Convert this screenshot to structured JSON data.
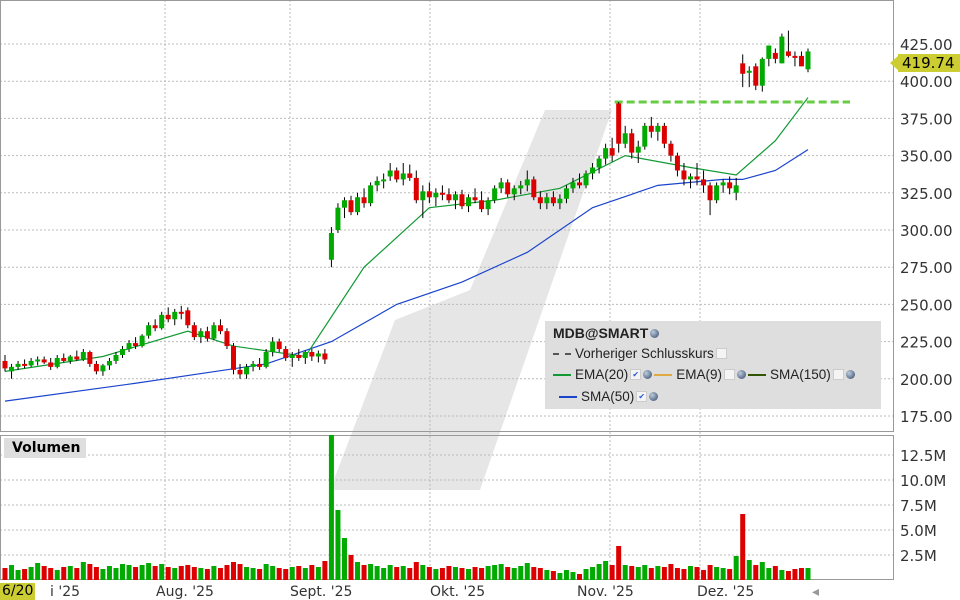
{
  "chart_data": {
    "type": "candlestick",
    "symbol": "MDB@SMART",
    "last_price": "419.74",
    "previous_close": 386,
    "previous_close_label": "Vorheriger Schlusskurs",
    "y_ticks": [
      "425.00",
      "400.00",
      "375.00",
      "350.00",
      "325.00",
      "300.00",
      "275.00",
      "250.00",
      "225.00",
      "200.00",
      "175.00"
    ],
    "ylim": [
      175,
      425
    ],
    "volume_label": "Volumen",
    "volume_ticks": [
      "12.5M",
      "10.0M",
      "7.5M",
      "5.0M",
      "2.5M"
    ],
    "x_labels": [
      "6/20",
      "i '25",
      "Aug. '25",
      "Sept. '25",
      "Okt. '25",
      "Nov. '25",
      "Dez. '25"
    ],
    "colors": {
      "up": "#00aa00",
      "down": "#dd0000",
      "ema20": "#119933",
      "sma50": "#1a44cc",
      "prev_close": "#66cc44",
      "ema9": "#ddaa44",
      "sma150": "#335500"
    },
    "indicators": [
      {
        "label": "EMA(20)",
        "checked": true
      },
      {
        "label": "EMA(9)",
        "checked": false
      },
      {
        "label": "SMA(150)",
        "checked": false
      },
      {
        "label": "SMA(50)",
        "checked": true
      }
    ],
    "ema20": [
      [
        0,
        205
      ],
      [
        15,
        215
      ],
      [
        28,
        232
      ],
      [
        35,
        222
      ],
      [
        46,
        215
      ],
      [
        55,
        275
      ],
      [
        65,
        315
      ],
      [
        75,
        320
      ],
      [
        85,
        328
      ],
      [
        95,
        350
      ],
      [
        105,
        342
      ],
      [
        112,
        337
      ],
      [
        118,
        360
      ],
      [
        123,
        389
      ]
    ],
    "sma50": [
      [
        0,
        185
      ],
      [
        20,
        197
      ],
      [
        40,
        210
      ],
      [
        50,
        225
      ],
      [
        60,
        250
      ],
      [
        70,
        265
      ],
      [
        80,
        285
      ],
      [
        90,
        315
      ],
      [
        100,
        330
      ],
      [
        110,
        334
      ],
      [
        113,
        334
      ],
      [
        118,
        340
      ],
      [
        123,
        354
      ]
    ],
    "candles_ohlcv": [
      [
        212,
        216,
        205,
        207,
        1.2
      ],
      [
        205,
        210,
        200,
        208,
        1.5
      ],
      [
        208,
        212,
        206,
        210,
        1.0
      ],
      [
        210,
        213,
        207,
        209,
        1.1
      ],
      [
        209,
        214,
        208,
        212,
        1.3
      ],
      [
        212,
        215,
        209,
        213,
        1.7
      ],
      [
        213,
        215,
        210,
        211,
        1.4
      ],
      [
        211,
        214,
        206,
        208,
        1.2
      ],
      [
        208,
        216,
        207,
        214,
        1.0
      ],
      [
        214,
        217,
        211,
        212,
        1.3
      ],
      [
        212,
        216,
        210,
        215,
        1.4
      ],
      [
        215,
        219,
        212,
        213,
        1.2
      ],
      [
        213,
        220,
        212,
        218,
        1.8
      ],
      [
        218,
        219,
        208,
        210,
        1.6
      ],
      [
        210,
        212,
        203,
        205,
        1.3
      ],
      [
        205,
        210,
        202,
        209,
        1.1
      ],
      [
        209,
        214,
        206,
        212,
        1.4
      ],
      [
        212,
        218,
        210,
        216,
        1.2
      ],
      [
        216,
        222,
        214,
        220,
        1.6
      ],
      [
        220,
        226,
        218,
        224,
        1.5
      ],
      [
        224,
        228,
        220,
        222,
        1.3
      ],
      [
        222,
        230,
        221,
        229,
        1.5
      ],
      [
        229,
        238,
        227,
        236,
        1.7
      ],
      [
        236,
        240,
        232,
        234,
        1.4
      ],
      [
        234,
        245,
        233,
        243,
        1.6
      ],
      [
        243,
        248,
        238,
        240,
        1.3
      ],
      [
        240,
        247,
        236,
        245,
        1.2
      ],
      [
        245,
        249,
        240,
        244,
        1.4
      ],
      [
        246,
        248,
        234,
        236,
        1.5
      ],
      [
        236,
        238,
        226,
        228,
        1.3
      ],
      [
        228,
        234,
        224,
        232,
        1.2
      ],
      [
        232,
        235,
        225,
        227,
        1.1
      ],
      [
        227,
        238,
        226,
        236,
        1.4
      ],
      [
        236,
        240,
        230,
        232,
        1.2
      ],
      [
        232,
        234,
        220,
        222,
        1.5
      ],
      [
        222,
        224,
        203,
        206,
        1.8
      ],
      [
        206,
        210,
        200,
        203,
        1.6
      ],
      [
        203,
        210,
        200,
        208,
        1.3
      ],
      [
        208,
        212,
        205,
        210,
        1.2
      ],
      [
        210,
        214,
        206,
        208,
        1.1
      ],
      [
        208,
        220,
        207,
        218,
        1.6
      ],
      [
        218,
        228,
        215,
        225,
        1.4
      ],
      [
        225,
        227,
        218,
        220,
        1.2
      ],
      [
        220,
        222,
        212,
        214,
        1.1
      ],
      [
        214,
        218,
        208,
        216,
        1.3
      ],
      [
        216,
        220,
        212,
        214,
        1.4
      ],
      [
        214,
        219,
        210,
        218,
        1.2
      ],
      [
        218,
        220,
        212,
        215,
        1.5
      ],
      [
        215,
        219,
        211,
        217,
        1.3
      ],
      [
        217,
        220,
        210,
        213,
        1.9
      ],
      [
        280,
        302,
        275,
        298,
        14.5
      ],
      [
        300,
        318,
        298,
        315,
        7.0
      ],
      [
        315,
        322,
        308,
        320,
        4.2
      ],
      [
        320,
        323,
        310,
        312,
        2.5
      ],
      [
        312,
        325,
        310,
        322,
        1.8
      ],
      [
        322,
        328,
        315,
        318,
        1.5
      ],
      [
        318,
        332,
        316,
        330,
        1.6
      ],
      [
        330,
        336,
        326,
        333,
        1.4
      ],
      [
        333,
        338,
        328,
        334,
        1.2
      ],
      [
        336,
        345,
        333,
        340,
        1.5
      ],
      [
        340,
        342,
        332,
        334,
        1.3
      ],
      [
        334,
        345,
        330,
        338,
        1.4
      ],
      [
        338,
        344,
        333,
        335,
        1.2
      ],
      [
        335,
        340,
        318,
        320,
        1.8
      ],
      [
        320,
        330,
        308,
        326,
        1.5
      ],
      [
        326,
        332,
        318,
        322,
        1.3
      ],
      [
        322,
        328,
        316,
        325,
        1.1
      ],
      [
        325,
        330,
        320,
        324,
        1.2
      ],
      [
        324,
        328,
        318,
        320,
        1.4
      ],
      [
        320,
        326,
        314,
        324,
        1.3
      ],
      [
        324,
        327,
        314,
        316,
        1.2
      ],
      [
        316,
        324,
        312,
        322,
        1.1
      ],
      [
        322,
        328,
        318,
        320,
        1.3
      ],
      [
        320,
        326,
        312,
        314,
        1.2
      ],
      [
        314,
        322,
        310,
        320,
        1.4
      ],
      [
        320,
        330,
        318,
        328,
        1.5
      ],
      [
        328,
        335,
        325,
        332,
        1.6
      ],
      [
        332,
        334,
        322,
        324,
        1.3
      ],
      [
        324,
        330,
        320,
        328,
        1.2
      ],
      [
        328,
        333,
        324,
        330,
        1.4
      ],
      [
        330,
        340,
        326,
        334,
        1.7
      ],
      [
        334,
        336,
        320,
        322,
        1.3
      ],
      [
        322,
        326,
        314,
        318,
        1.2
      ],
      [
        318,
        325,
        314,
        322,
        1.0
      ],
      [
        322,
        326,
        316,
        318,
        0.9
      ],
      [
        318,
        324,
        314,
        321,
        0.7
      ],
      [
        321,
        330,
        318,
        328,
        1.0
      ],
      [
        328,
        335,
        325,
        332,
        0.8
      ],
      [
        332,
        338,
        328,
        330,
        0.6
      ],
      [
        330,
        340,
        328,
        338,
        1.1
      ],
      [
        338,
        345,
        334,
        342,
        1.3
      ],
      [
        342,
        350,
        338,
        348,
        1.6
      ],
      [
        348,
        358,
        344,
        355,
        1.9
      ],
      [
        355,
        362,
        346,
        350,
        1.5
      ],
      [
        385,
        386,
        352,
        358,
        3.4
      ],
      [
        358,
        370,
        355,
        365,
        1.5
      ],
      [
        365,
        368,
        348,
        352,
        1.4
      ],
      [
        352,
        360,
        345,
        356,
        1.3
      ],
      [
        356,
        372,
        354,
        370,
        1.5
      ],
      [
        370,
        376,
        362,
        366,
        1.2
      ],
      [
        366,
        372,
        360,
        370,
        1.4
      ],
      [
        370,
        372,
        355,
        358,
        1.3
      ],
      [
        358,
        360,
        346,
        350,
        1.6
      ],
      [
        350,
        352,
        336,
        340,
        1.2
      ],
      [
        340,
        345,
        330,
        334,
        1.1
      ],
      [
        334,
        338,
        328,
        336,
        1.4
      ],
      [
        336,
        345,
        330,
        334,
        1.3
      ],
      [
        334,
        340,
        325,
        330,
        1.0
      ],
      [
        330,
        332,
        310,
        320,
        1.5
      ],
      [
        320,
        332,
        318,
        330,
        1.3
      ],
      [
        330,
        334,
        325,
        332,
        1.2
      ],
      [
        332,
        336,
        324,
        328,
        1.1
      ],
      [
        325,
        335,
        320,
        330,
        2.4
      ],
      [
        412,
        418,
        396,
        405,
        6.6
      ],
      [
        406,
        410,
        396,
        407,
        2.0
      ],
      [
        410,
        412,
        394,
        397,
        1.5
      ],
      [
        397,
        416,
        393,
        415,
        1.8
      ],
      [
        415,
        424,
        410,
        424,
        1.2
      ],
      [
        419,
        422,
        412,
        415,
        1.4
      ],
      [
        412,
        432,
        412,
        430,
        1.0
      ],
      [
        420,
        434,
        416,
        417,
        0.9
      ],
      [
        417,
        420,
        410,
        416,
        1.1
      ],
      [
        417,
        420,
        410,
        410,
        1.2
      ],
      [
        408,
        422,
        406,
        420,
        1.2
      ]
    ]
  }
}
